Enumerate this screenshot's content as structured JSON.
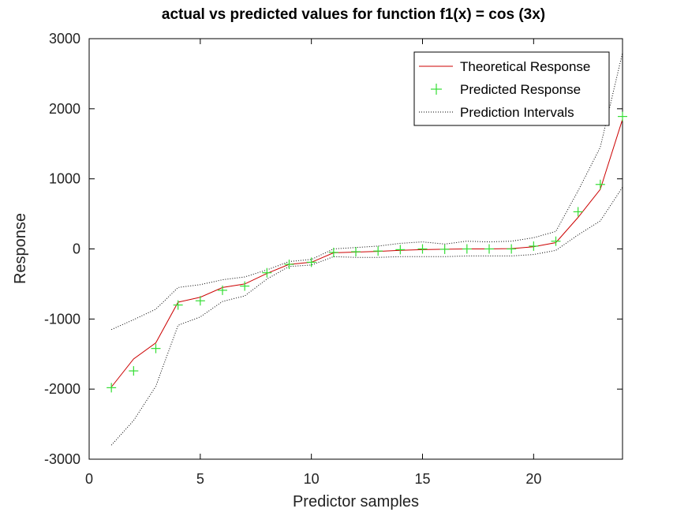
{
  "chart_data": {
    "type": "line",
    "title": "actual vs predicted values for function f1(x) = cos (3x)",
    "xlabel": "Predictor samples",
    "ylabel": "Response",
    "xlim": [
      0,
      24
    ],
    "ylim": [
      -3000,
      3000
    ],
    "xticks": [
      0,
      5,
      10,
      15,
      20
    ],
    "yticks": [
      -3000,
      -2000,
      -1000,
      0,
      1000,
      2000,
      3000
    ],
    "grid": false,
    "legend_position": "top-right",
    "x": [
      1,
      2,
      3,
      4,
      5,
      6,
      7,
      8,
      9,
      10,
      11,
      12,
      13,
      14,
      15,
      16,
      17,
      18,
      19,
      20,
      21,
      22,
      23,
      24
    ],
    "series": [
      {
        "name": "Theoretical Response",
        "style": "line",
        "color": "#cc0000",
        "values": [
          -1970,
          -1570,
          -1340,
          -760,
          -690,
          -550,
          -500,
          -350,
          -220,
          -190,
          -55,
          -45,
          -35,
          -20,
          -10,
          -5,
          0,
          0,
          5,
          30,
          90,
          450,
          850,
          1850
        ]
      },
      {
        "name": "Predicted Response",
        "style": "marker",
        "marker": "+",
        "color": "#33dd33",
        "values": [
          -1980,
          -1740,
          -1420,
          -800,
          -740,
          -590,
          -530,
          -340,
          -220,
          -190,
          -50,
          -40,
          -30,
          -10,
          0,
          -5,
          0,
          0,
          0,
          40,
          110,
          530,
          920,
          1890
        ]
      },
      {
        "name": "Prediction Intervals",
        "style": "dotted",
        "color": "#000000",
        "upper": [
          -1150,
          -1010,
          -860,
          -550,
          -510,
          -440,
          -400,
          -300,
          -180,
          -150,
          0,
          20,
          40,
          80,
          100,
          70,
          110,
          100,
          110,
          160,
          250,
          830,
          1450,
          2800
        ],
        "lower": [
          -2800,
          -2450,
          -1960,
          -1090,
          -970,
          -750,
          -670,
          -430,
          -250,
          -230,
          -110,
          -120,
          -120,
          -110,
          -110,
          -110,
          -100,
          -100,
          -100,
          -80,
          -20,
          200,
          400,
          880
        ]
      }
    ]
  }
}
